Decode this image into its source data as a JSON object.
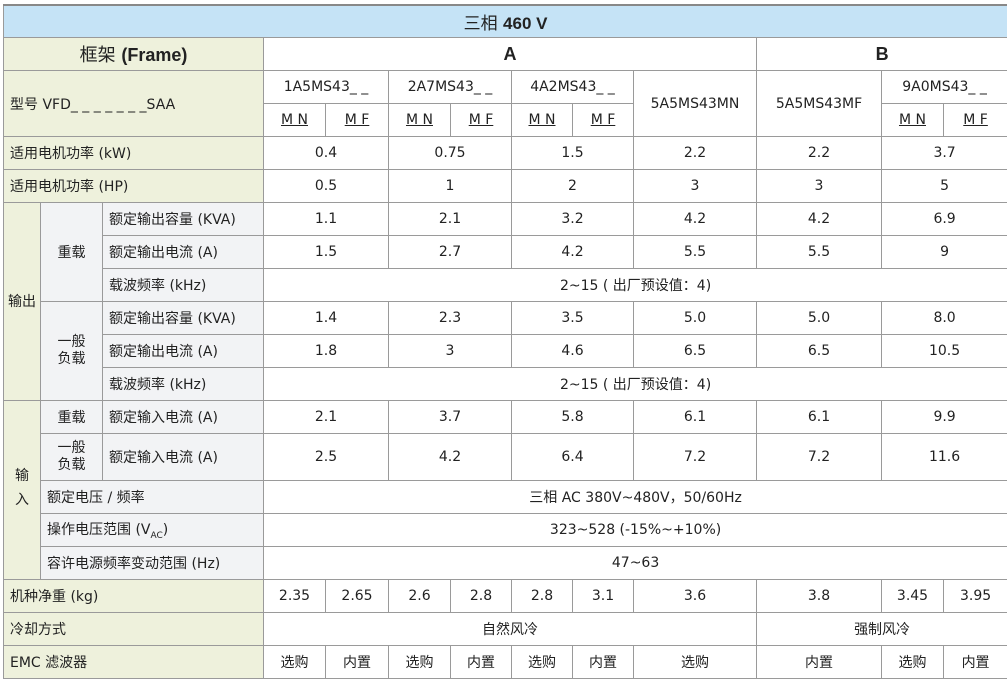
{
  "title": {
    "prefix": "三相",
    "voltage": "460 V"
  },
  "frame_row": {
    "label_cn": "框架",
    "label_en": "(Frame)",
    "a": "A",
    "b": "B"
  },
  "model_row": {
    "label": "型号 VFD_ _ _ _ _ _ _SAA",
    "models": [
      "1A5MS43_ _",
      "2A7MS43_ _",
      "4A2MS43_ _",
      "5A5MS43MN",
      "5A5MS43MF",
      "9A0MS43_ _"
    ],
    "suffix_mn": "M N",
    "suffix_mf": "M F"
  },
  "kw_row": {
    "label": "适用电机功率 (kW)",
    "values": [
      "0.4",
      "0.75",
      "1.5",
      "2.2",
      "2.2",
      "3.7"
    ]
  },
  "hp_row": {
    "label": "适用电机功率 (HP)",
    "values": [
      "0.5",
      "1",
      "2",
      "3",
      "3",
      "5"
    ]
  },
  "output": {
    "group": "输出",
    "heavy": {
      "label": "重载",
      "kva": {
        "label": "额定输出容量 (KVA)",
        "values": [
          "1.1",
          "2.1",
          "3.2",
          "4.2",
          "4.2",
          "6.9"
        ]
      },
      "amp": {
        "label": "额定输出电流 (A)",
        "values": [
          "1.5",
          "2.7",
          "4.2",
          "5.5",
          "5.5",
          "9"
        ]
      },
      "freq": {
        "label": "载波频率 (kHz)",
        "value": "2~15 ( 出厂预设值：4)"
      }
    },
    "normal": {
      "label": "一般负载",
      "kva": {
        "label": "额定输出容量 (KVA)",
        "values": [
          "1.4",
          "2.3",
          "3.5",
          "5.0",
          "5.0",
          "8.0"
        ]
      },
      "amp": {
        "label": "额定输出电流 (A)",
        "values": [
          "1.8",
          "3",
          "4.6",
          "6.5",
          "6.5",
          "10.5"
        ]
      },
      "freq": {
        "label": "载波频率 (kHz)",
        "value": "2~15 ( 出厂预设值：4)"
      }
    }
  },
  "input": {
    "group": "输入",
    "heavy": {
      "label": "重载",
      "amp_label": "额定输入电流 (A)",
      "values": [
        "2.1",
        "3.7",
        "5.8",
        "6.1",
        "6.1",
        "9.9"
      ]
    },
    "normal": {
      "label": "一般负载",
      "amp_label": "额定输入电流 (A)",
      "values": [
        "2.5",
        "4.2",
        "6.4",
        "7.2",
        "7.2",
        "11.6"
      ]
    },
    "voltage": {
      "label": "额定电压 / 频率",
      "value": "三相 AC 380V~480V，50/60Hz"
    },
    "range": {
      "label": "操作电压范围 (V",
      "label_sub": "AC",
      "label_end": ")",
      "value": "323~528 (-15%~+10%)"
    },
    "freq_range": {
      "label": "容许电源频率变动范围 (Hz)",
      "value": "47~63"
    }
  },
  "weight_row": {
    "label": "机种净重 (kg)",
    "values": [
      "2.35",
      "2.65",
      "2.6",
      "2.8",
      "2.8",
      "3.1",
      "3.6",
      "3.8",
      "3.45",
      "3.95"
    ]
  },
  "cooling_row": {
    "label": "冷却方式",
    "a": "自然风冷",
    "b": "强制风冷"
  },
  "emc_row": {
    "label": "EMC 滤波器",
    "values": [
      "选购",
      "内置",
      "选购",
      "内置",
      "选购",
      "内置",
      "选购",
      "内置",
      "选购",
      "内置"
    ]
  },
  "colors": {
    "header": "#c5e3f6",
    "label": "#eef1dc",
    "sublabel": "#f2f3f5"
  }
}
